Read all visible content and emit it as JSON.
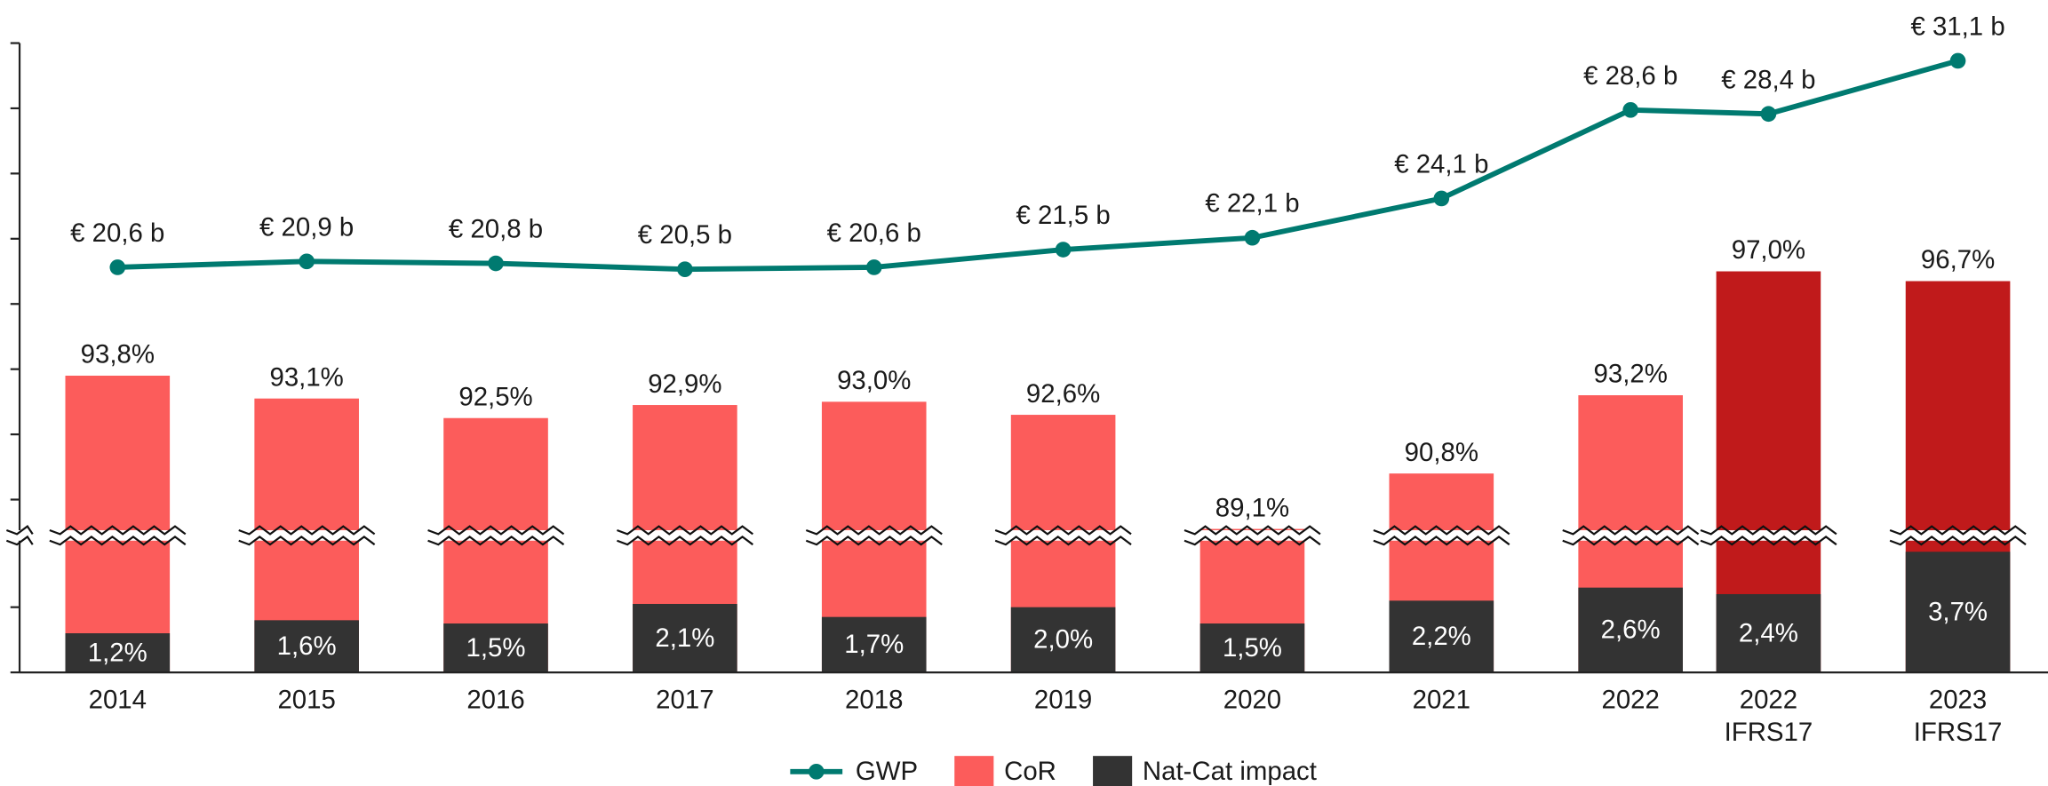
{
  "chart_data": {
    "type": "bar-line",
    "categories": [
      "2014",
      "2015",
      "2016",
      "2017",
      "2018",
      "2019",
      "2020",
      "2021",
      "2022",
      "2022\nIFRS17",
      "2023\nIFRS17"
    ],
    "ylim": [
      0,
      104
    ],
    "axis_break": [
      4.2,
      88.9
    ],
    "yticks": [
      0,
      2,
      90,
      92,
      94,
      96,
      98,
      100,
      102,
      104
    ],
    "y2lim": [
      0,
      32
    ],
    "legend": "bottom",
    "series": [
      {
        "name": "GWP",
        "type": "line",
        "axis": "y2",
        "color": "#007a70",
        "values": [
          20.6,
          20.9,
          20.8,
          20.5,
          20.6,
          21.5,
          22.1,
          24.1,
          28.6,
          28.4,
          31.1
        ],
        "value_labels": [
          "€ 20,6 b",
          "€ 20,9 b",
          "€ 20,8 b",
          "€ 20,5 b",
          "€ 20,6 b",
          "€ 21,5 b",
          "€ 22,1 b",
          "€ 24,1 b",
          "€ 28,6 b",
          "€ 28,4 b",
          "€ 31,1 b"
        ]
      },
      {
        "name": "CoR",
        "type": "bar",
        "color": "#fc5c5b",
        "colors": [
          "#fc5c5b",
          "#fc5c5b",
          "#fc5c5b",
          "#fc5c5b",
          "#fc5c5b",
          "#fc5c5b",
          "#fc5c5b",
          "#fc5c5b",
          "#fc5c5b",
          "#c01a1b",
          "#c01a1b"
        ],
        "values": [
          93.8,
          93.1,
          92.5,
          92.9,
          93.0,
          92.6,
          89.1,
          90.8,
          93.2,
          97.0,
          96.7
        ],
        "value_labels": [
          "93,8%",
          "93,1%",
          "92,5%",
          "92,9%",
          "93,0%",
          "92,6%",
          "89,1%",
          "90,8%",
          "93,2%",
          "97,0%",
          "96,7%"
        ]
      },
      {
        "name": "Nat-Cat impact",
        "type": "bar",
        "color": "#333333",
        "values": [
          1.2,
          1.6,
          1.5,
          2.1,
          1.7,
          2.0,
          1.5,
          2.2,
          2.6,
          2.4,
          3.7
        ],
        "value_labels": [
          "1,2%",
          "1,6%",
          "1,5%",
          "2,1%",
          "1,7%",
          "2,0%",
          "1,5%",
          "2,2%",
          "2,6%",
          "2,4%",
          "3,7%"
        ]
      }
    ]
  }
}
